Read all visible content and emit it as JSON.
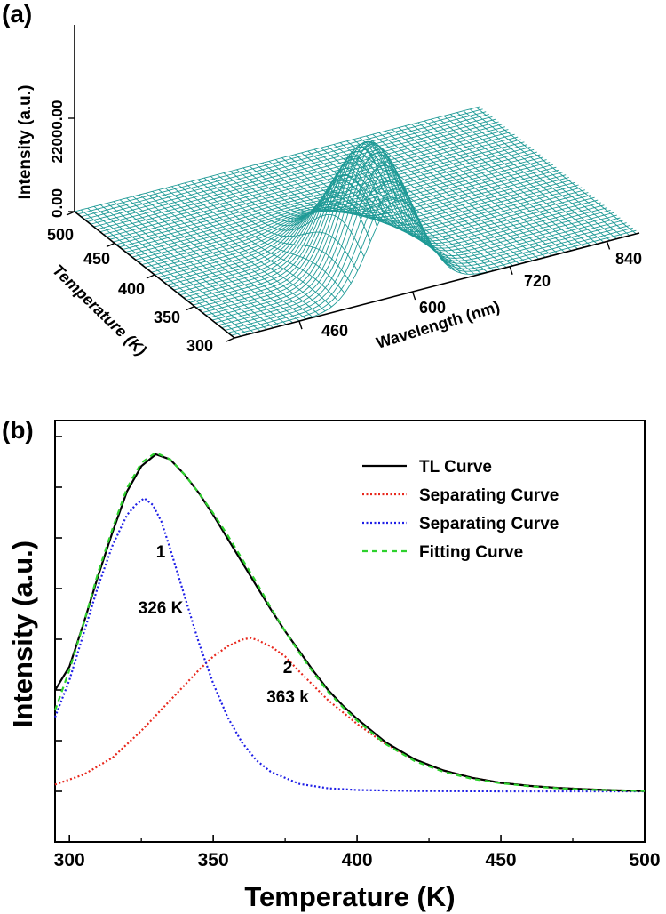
{
  "panel_a": {
    "label": "(a)",
    "colors": {
      "mesh": "#1e9a96",
      "axis": "#000000"
    },
    "chart_data": {
      "type": "surface",
      "zlabel": "Intensity (a.u.)",
      "ylabel": "Temperature (K)",
      "xlabel": "Wavelength (nm)",
      "z_ticks": [
        "0.00",
        "22000.00"
      ],
      "temp_ticks": [
        "500",
        "450",
        "400",
        "350",
        "300"
      ],
      "wavelength_ticks": [
        "460",
        "600",
        "720",
        "840"
      ],
      "peak": {
        "wavelength_nm": 580,
        "temperature_K": 330,
        "intensity": 22000
      }
    }
  },
  "panel_b": {
    "label": "(b)",
    "colors": {
      "tl": "#000000",
      "sep1": "#e8271c",
      "sep2": "#1e1ee6",
      "fit": "#2ed12e"
    },
    "chart_data": {
      "type": "line",
      "xlabel": "Temperature (K)",
      "ylabel": "Intensity (a.u.)",
      "xlim": [
        295,
        500
      ],
      "xticks": [
        "300",
        "350",
        "400",
        "450",
        "500"
      ],
      "legend_position": "top-right",
      "series": [
        {
          "name": "TL Curve",
          "style": "solid",
          "x": [
            295,
            300,
            305,
            310,
            315,
            320,
            325,
            330,
            335,
            340,
            345,
            350,
            355,
            360,
            365,
            370,
            375,
            380,
            385,
            390,
            395,
            400,
            410,
            420,
            430,
            440,
            450,
            460,
            470,
            480,
            490,
            500
          ],
          "y": [
            0.3,
            0.37,
            0.5,
            0.64,
            0.77,
            0.89,
            0.965,
            1.0,
            0.985,
            0.94,
            0.885,
            0.82,
            0.75,
            0.68,
            0.61,
            0.54,
            0.475,
            0.415,
            0.355,
            0.3,
            0.255,
            0.215,
            0.145,
            0.095,
            0.062,
            0.04,
            0.025,
            0.016,
            0.01,
            0.006,
            0.003,
            0.001
          ]
        },
        {
          "name": "Separating Curve",
          "style": "dotted",
          "x": [
            295,
            305,
            315,
            325,
            335,
            345,
            350,
            355,
            360,
            363,
            365,
            370,
            375,
            380,
            390,
            400,
            410,
            420,
            430,
            440,
            450,
            460,
            470,
            480,
            490,
            500
          ],
          "y": [
            0.02,
            0.05,
            0.1,
            0.18,
            0.27,
            0.36,
            0.4,
            0.43,
            0.45,
            0.455,
            0.45,
            0.43,
            0.4,
            0.355,
            0.27,
            0.2,
            0.14,
            0.095,
            0.062,
            0.04,
            0.025,
            0.016,
            0.01,
            0.006,
            0.003,
            0.001
          ]
        },
        {
          "name": "Separating Curve",
          "style": "dotted",
          "x": [
            295,
            300,
            305,
            310,
            315,
            320,
            323,
            326,
            329,
            332,
            335,
            340,
            345,
            350,
            355,
            360,
            365,
            370,
            380,
            390,
            400,
            420,
            450,
            500
          ],
          "y": [
            0.22,
            0.33,
            0.47,
            0.61,
            0.73,
            0.82,
            0.85,
            0.87,
            0.85,
            0.8,
            0.72,
            0.58,
            0.44,
            0.32,
            0.22,
            0.145,
            0.092,
            0.058,
            0.022,
            0.009,
            0.004,
            0.001,
            0.0,
            0.0
          ]
        },
        {
          "name": "Fitting Curve",
          "style": "dashed",
          "x": [
            295,
            300,
            305,
            310,
            315,
            320,
            325,
            330,
            335,
            340,
            345,
            350,
            355,
            360,
            365,
            370,
            375,
            380,
            385,
            390,
            395,
            400,
            410,
            420,
            430,
            440,
            450,
            460,
            470,
            480,
            490,
            500
          ],
          "y": [
            0.24,
            0.36,
            0.5,
            0.65,
            0.78,
            0.9,
            0.975,
            1.005,
            0.985,
            0.94,
            0.885,
            0.825,
            0.76,
            0.69,
            0.62,
            0.545,
            0.475,
            0.41,
            0.35,
            0.295,
            0.25,
            0.21,
            0.14,
            0.09,
            0.058,
            0.037,
            0.024,
            0.015,
            0.009,
            0.005,
            0.003,
            0.001
          ]
        }
      ],
      "annotations": [
        {
          "text": "1"
        },
        {
          "text": "326 K"
        },
        {
          "text": "2"
        },
        {
          "text": "363 k"
        }
      ]
    }
  }
}
